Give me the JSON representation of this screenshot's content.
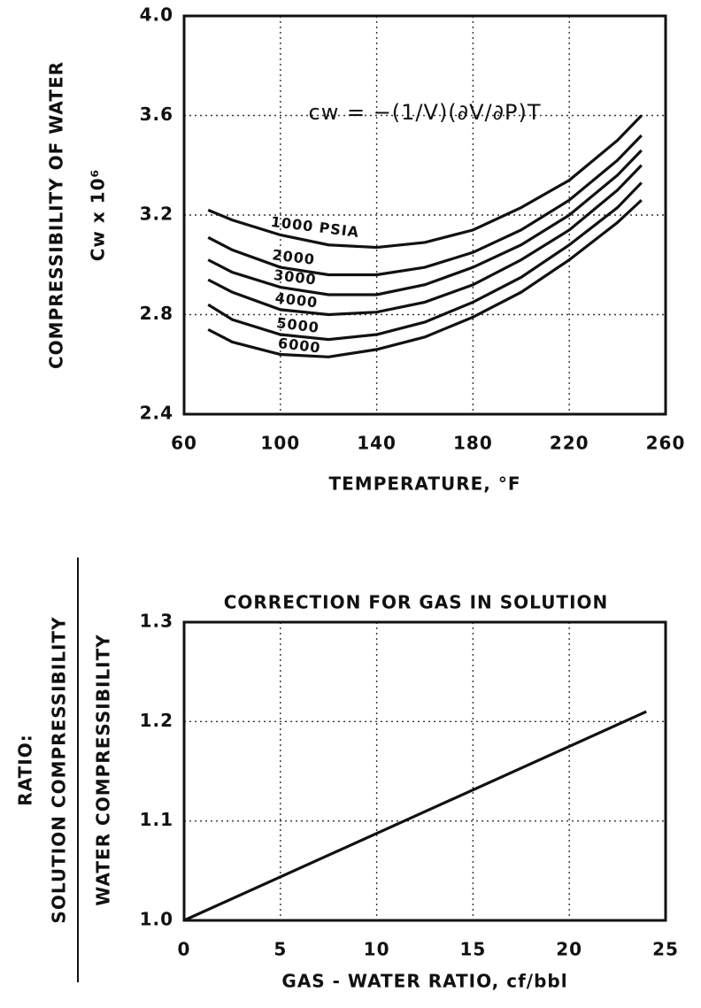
{
  "chart_data": [
    {
      "type": "line",
      "y_label": [
        "COMPRESSIBILITY OF WATER",
        "Cw x 10⁶"
      ],
      "x_label": "TEMPERATURE, °F",
      "annotation": "cw = −(1/V)(∂V/∂P)T",
      "x": [
        70,
        80,
        100,
        120,
        140,
        160,
        180,
        200,
        220,
        240,
        250
      ],
      "series": [
        {
          "name": "1000 PSIA",
          "color": "#111111",
          "values": [
            3.22,
            3.18,
            3.12,
            3.08,
            3.07,
            3.09,
            3.14,
            3.23,
            3.34,
            3.5,
            3.6
          ]
        },
        {
          "name": "2000",
          "color": "#111111",
          "values": [
            3.11,
            3.06,
            2.99,
            2.96,
            2.96,
            2.99,
            3.05,
            3.14,
            3.26,
            3.42,
            3.52
          ]
        },
        {
          "name": "3000",
          "color": "#111111",
          "values": [
            3.02,
            2.97,
            2.91,
            2.88,
            2.88,
            2.92,
            2.99,
            3.08,
            3.2,
            3.36,
            3.46
          ]
        },
        {
          "name": "4000",
          "color": "#111111",
          "values": [
            2.94,
            2.89,
            2.82,
            2.8,
            2.81,
            2.85,
            2.92,
            3.02,
            3.14,
            3.3,
            3.4
          ]
        },
        {
          "name": "5000",
          "color": "#111111",
          "values": [
            2.84,
            2.78,
            2.72,
            2.7,
            2.72,
            2.77,
            2.85,
            2.95,
            3.08,
            3.23,
            3.33
          ]
        },
        {
          "name": "6000",
          "color": "#111111",
          "values": [
            2.74,
            2.69,
            2.64,
            2.63,
            2.66,
            2.71,
            2.79,
            2.89,
            3.02,
            3.17,
            3.26
          ]
        }
      ],
      "xlim": [
        60,
        260
      ],
      "xticks": [
        60,
        100,
        140,
        180,
        220,
        260
      ],
      "ylim": [
        2.4,
        4.0
      ],
      "yticks": [
        2.4,
        2.8,
        3.2,
        3.6,
        {
          "value": 4,
          "label": "4.0"
        }
      ],
      "grid": true
    },
    {
      "type": "line",
      "title": "CORRECTION FOR GAS IN SOLUTION",
      "y_label": [
        "RATIO:",
        "SOLUTION COMPRESSIBILITY",
        "WATER COMPRESSIBILITY"
      ],
      "x_label": "GAS - WATER RATIO, cf/bbl",
      "x": [
        0,
        24
      ],
      "series": [
        {
          "name": null,
          "color": "#111111",
          "values": [
            1.0,
            1.21
          ]
        }
      ],
      "xlim": [
        0,
        25
      ],
      "xticks": [
        0,
        5,
        10,
        15,
        20,
        25
      ],
      "ylim": [
        1.0,
        1.3
      ],
      "yticks": [
        {
          "value": 1,
          "label": "1.0"
        },
        1.1,
        1.2,
        1.3
      ],
      "grid": true
    }
  ]
}
